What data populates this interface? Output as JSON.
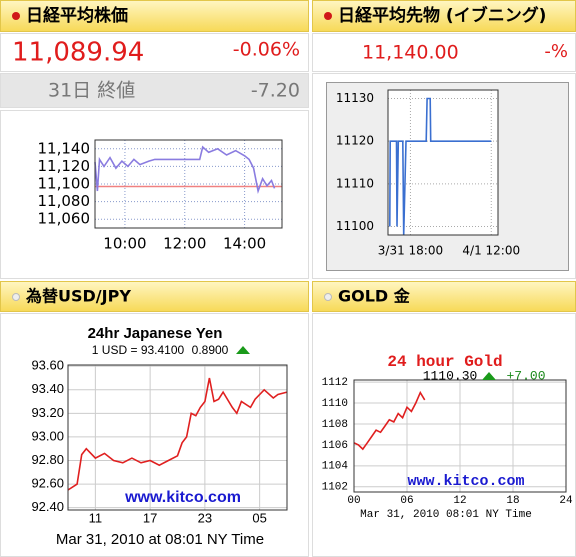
{
  "panels": [
    {
      "title": "日経平均株価",
      "price": "11,089.94",
      "change": "-0.06%",
      "sub_label": "31日 終値",
      "sub_change": "-7.20"
    },
    {
      "title": "日経平均先物 (イブニング)",
      "price": "11,140.00",
      "change": "-%"
    },
    {
      "title": "為替USD/JPY"
    },
    {
      "title": "GOLD 金"
    }
  ],
  "chart_data": [
    {
      "type": "line",
      "xlim": [
        9,
        15.25
      ],
      "ylim": [
        11050,
        11150
      ],
      "xticks": [
        {
          "value": 10,
          "label": "10:00"
        },
        {
          "value": 12,
          "label": "12:00"
        },
        {
          "value": 14,
          "label": "14:00"
        }
      ],
      "yticks": [
        {
          "value": 11060,
          "label": "11,060"
        },
        {
          "value": 11080,
          "label": "11,080"
        },
        {
          "value": 11100,
          "label": "11,100"
        },
        {
          "value": 11120,
          "label": "11,120"
        },
        {
          "value": 11140,
          "label": "11,140"
        }
      ],
      "grid": true,
      "ref_line": {
        "value": 11097.14,
        "color": "#f08080"
      },
      "x": [
        9.0,
        9.08,
        9.15,
        9.3,
        9.5,
        9.7,
        9.9,
        10.1,
        10.3,
        10.5,
        10.8,
        11.0,
        12.5,
        12.6,
        12.8,
        13.1,
        13.4,
        13.7,
        14.0,
        14.15,
        14.3,
        14.45,
        14.6,
        14.75,
        14.9,
        15.0
      ],
      "series": [
        {
          "color": "#8a7ce0",
          "values": [
            11125,
            11092,
            11128,
            11120,
            11130,
            11118,
            11126,
            11120,
            11128,
            11122,
            11126,
            11128,
            11128,
            11142,
            11136,
            11140,
            11133,
            11138,
            11132,
            11128,
            11118,
            11092,
            11106,
            11098,
            11104,
            11095
          ]
        }
      ]
    },
    {
      "type": "line",
      "xlim": [
        13,
        37.5
      ],
      "ylim": [
        11098,
        11132
      ],
      "xticks": [
        {
          "value": 18,
          "label": "3/31 18:00"
        },
        {
          "value": 36,
          "label": "4/1 12:00"
        }
      ],
      "yticks": [
        11100,
        11110,
        11120,
        11130
      ],
      "grid": true,
      "x": [
        13.4,
        13.5,
        14.9,
        15.0,
        15.3,
        16.3,
        16.5,
        17.0,
        21.5,
        21.7,
        22.4,
        22.5,
        36
      ],
      "series": [
        {
          "color": "#3a6fd0",
          "values": [
            11100,
            11120,
            11120,
            11100,
            11120,
            11120,
            11098,
            11120,
            11120,
            11130,
            11130,
            11120,
            11120
          ]
        }
      ]
    },
    {
      "type": "line",
      "title": "24hr Japanese Yen",
      "quote_label": "1 USD = 93.4100",
      "change_label": "0.8900",
      "trend": "up",
      "source": "www.kitco.com",
      "footer": "Mar 31, 2010 at 08:01 NY Time",
      "xlim": [
        8,
        32
      ],
      "ylim": [
        92.38,
        93.61
      ],
      "xticks": [
        11,
        17,
        23,
        {
          "value": 29,
          "label": "05"
        }
      ],
      "yticks": [
        {
          "value": 92.4,
          "label": "92.40"
        },
        {
          "value": 92.6,
          "label": "92.60"
        },
        {
          "value": 92.8,
          "label": "92.80"
        },
        {
          "value": 93.0,
          "label": "93.00"
        },
        {
          "value": 93.2,
          "label": "93.20"
        },
        {
          "value": 93.4,
          "label": "93.40"
        },
        {
          "value": 93.6,
          "label": "93.60"
        }
      ],
      "grid": true,
      "x": [
        8,
        9,
        9.5,
        10,
        11,
        12,
        13,
        14,
        15,
        16,
        17,
        18,
        19,
        20,
        20.5,
        21,
        21.5,
        22,
        22.5,
        23,
        23.5,
        24,
        24.5,
        25,
        26,
        26.5,
        27,
        28,
        28.5,
        29.5,
        30.5,
        31,
        32
      ],
      "series": [
        {
          "color": "#e02020",
          "values": [
            92.55,
            92.6,
            92.85,
            92.9,
            92.82,
            92.86,
            92.8,
            92.78,
            92.82,
            92.78,
            92.8,
            92.76,
            92.8,
            92.84,
            92.95,
            93.0,
            93.2,
            93.18,
            93.25,
            93.3,
            93.5,
            93.3,
            93.32,
            93.38,
            93.25,
            93.2,
            93.3,
            93.25,
            93.32,
            93.4,
            93.33,
            93.36,
            93.38
          ]
        }
      ]
    },
    {
      "type": "line",
      "title": "24 hour Gold",
      "quote_label": "1110.30",
      "change_label": "+7.00",
      "trend": "up",
      "source": "www.kitco.com",
      "footer": "Mar 31, 2010 08:01 NY Time",
      "xlim": [
        0,
        24
      ],
      "ylim": [
        1101.5,
        1112.2
      ],
      "xticks": [
        {
          "value": 0,
          "label": "00"
        },
        {
          "value": 6,
          "label": "06"
        },
        12,
        18,
        24
      ],
      "yticks": [
        1102,
        1104,
        1106,
        1108,
        1110,
        1112
      ],
      "grid": true,
      "x": [
        0,
        0.5,
        1,
        1.5,
        2,
        2.5,
        3,
        3.5,
        4,
        4.5,
        5,
        5.5,
        6,
        6.5,
        7,
        7.5,
        8
      ],
      "series": [
        {
          "color": "#e02020",
          "values": [
            1106.2,
            1106,
            1105.6,
            1106.2,
            1106.8,
            1107.4,
            1107.2,
            1107.8,
            1108.4,
            1108.2,
            1109,
            1108.6,
            1109.6,
            1109.2,
            1110,
            1111,
            1110.3
          ]
        }
      ]
    }
  ]
}
